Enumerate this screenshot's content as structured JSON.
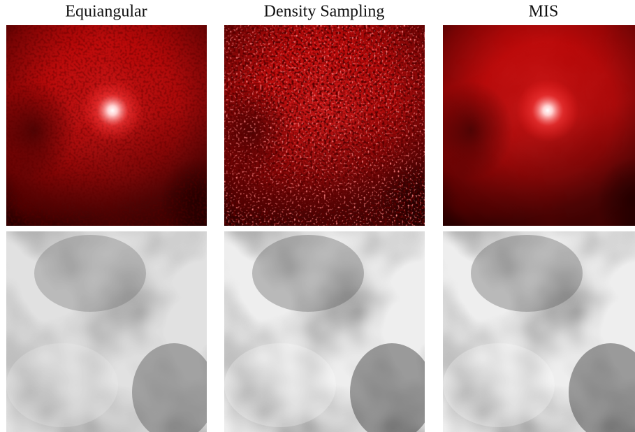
{
  "columns": [
    {
      "title": "Equiangular"
    },
    {
      "title": "Density Sampling"
    },
    {
      "title": "MIS"
    }
  ]
}
